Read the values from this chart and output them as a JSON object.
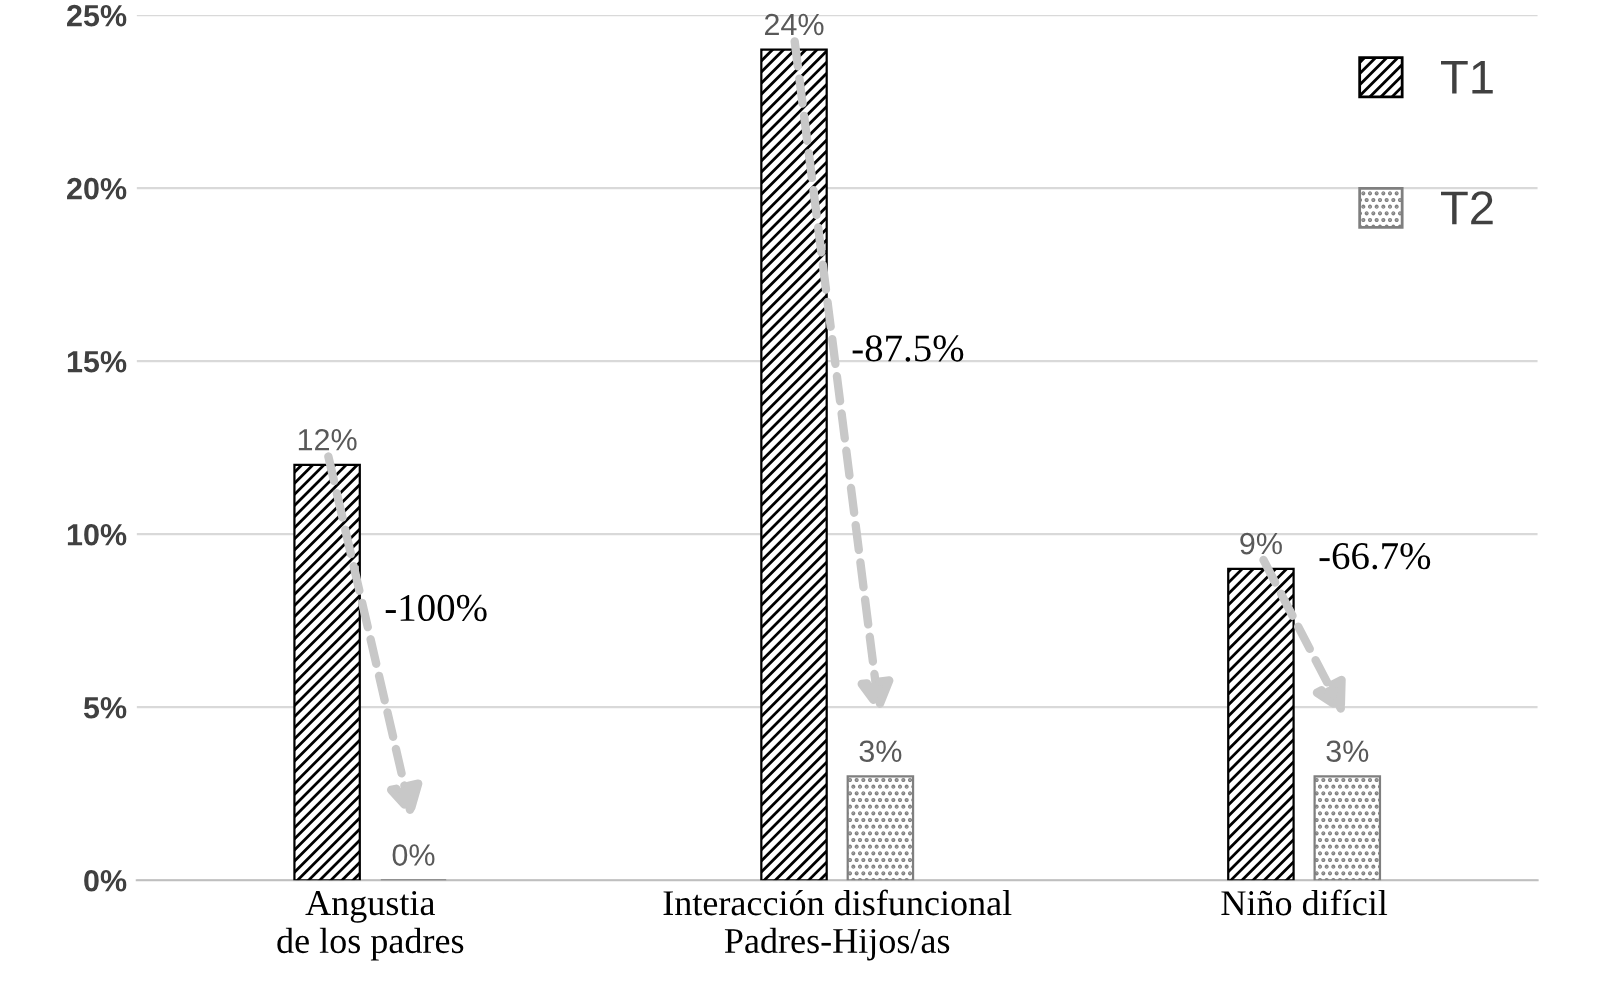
{
  "chart_data": {
    "type": "bar",
    "categories": [
      "Angustia\nde los padres",
      "Interacción disfuncional\nPadres-Hijos/as",
      "Niño difícil"
    ],
    "series": [
      {
        "name": "T1",
        "color": "#000000",
        "values": [
          12,
          24,
          9
        ],
        "value_labels": [
          "12%",
          "24%",
          "9%"
        ]
      },
      {
        "name": "T2",
        "color": "#7f7f7f",
        "values": [
          0,
          3,
          3
        ],
        "value_labels": [
          "0%",
          "3%",
          "3%"
        ]
      }
    ],
    "ylim": [
      0,
      25
    ],
    "yticks": [
      {
        "value": 0,
        "label": "0%"
      },
      {
        "value": 5,
        "label": "5%"
      },
      {
        "value": 10,
        "label": "10%"
      },
      {
        "value": 15,
        "label": "15%"
      },
      {
        "value": 20,
        "label": "20%"
      },
      {
        "value": 25,
        "label": "25%"
      }
    ],
    "grid": "y",
    "legend": "top right",
    "annotations": [
      "-100%",
      "-87.5%",
      "-66.7%"
    ]
  }
}
